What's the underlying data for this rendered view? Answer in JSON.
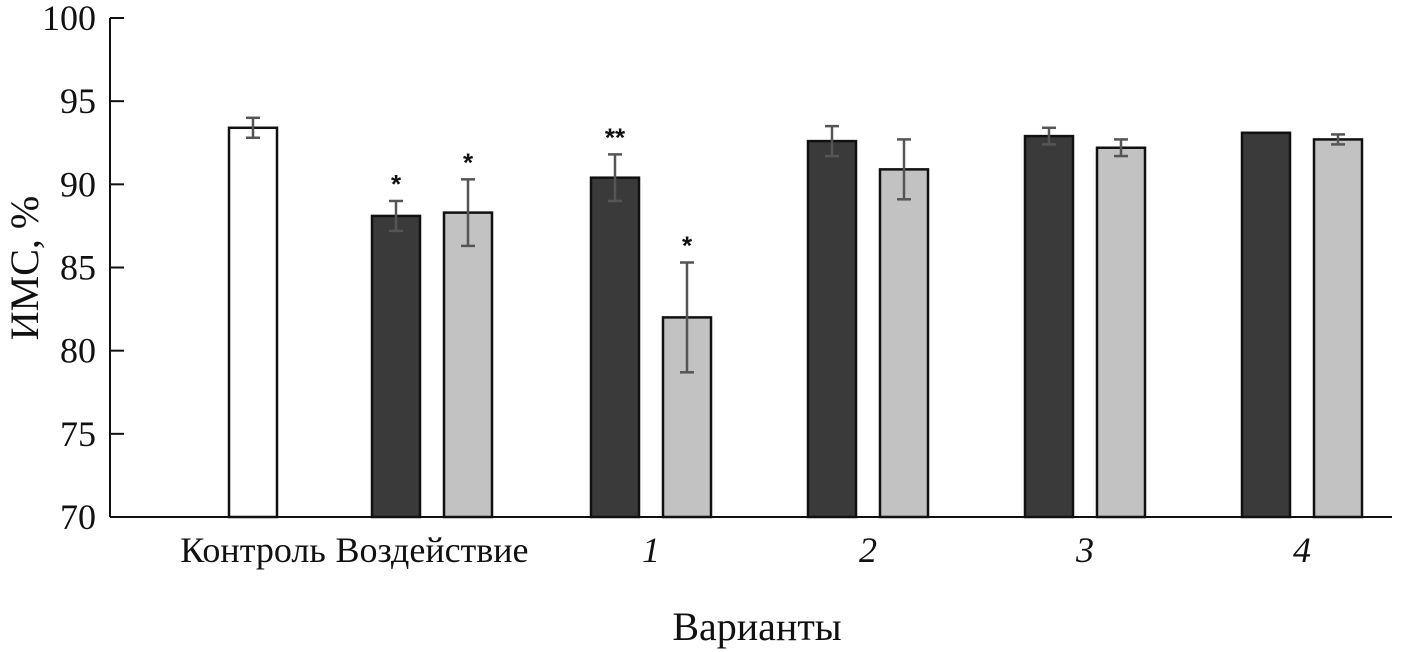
{
  "chart_data": {
    "type": "bar",
    "ylabel": "ИМС, %",
    "xlabel": "Варианты",
    "ylim": [
      70,
      100
    ],
    "yticks": [
      70,
      75,
      80,
      85,
      90,
      95,
      100
    ],
    "grid": false,
    "legend": "none",
    "colors": {
      "dark": "#3a3a3a",
      "light": "#c2c2c2",
      "control": "#ffffff",
      "error": "#555555"
    },
    "groups": [
      {
        "label": "Контроль",
        "italic": false,
        "bars": [
          {
            "style": "control",
            "value": 93.4,
            "err": 0.6,
            "sig": ""
          }
        ]
      },
      {
        "label": "Воздействие",
        "italic": false,
        "bars": [
          {
            "style": "dark",
            "value": 88.1,
            "err": 0.9,
            "sig": "*"
          },
          {
            "style": "light",
            "value": 88.3,
            "err": 2.0,
            "sig": "*"
          }
        ]
      },
      {
        "label": "1",
        "italic": true,
        "bars": [
          {
            "style": "dark",
            "value": 90.4,
            "err": 1.4,
            "sig": "**"
          },
          {
            "style": "light",
            "value": 82.0,
            "err": 3.3,
            "sig": "*"
          }
        ]
      },
      {
        "label": "2",
        "italic": true,
        "bars": [
          {
            "style": "dark",
            "value": 92.6,
            "err": 0.9,
            "sig": ""
          },
          {
            "style": "light",
            "value": 90.9,
            "err": 1.8,
            "sig": ""
          }
        ]
      },
      {
        "label": "3",
        "italic": true,
        "bars": [
          {
            "style": "dark",
            "value": 92.9,
            "err": 0.5,
            "sig": ""
          },
          {
            "style": "light",
            "value": 92.2,
            "err": 0.5,
            "sig": ""
          }
        ]
      },
      {
        "label": "4",
        "italic": true,
        "bars": [
          {
            "style": "dark",
            "value": 93.1,
            "err": 0.0,
            "sig": ""
          },
          {
            "style": "light",
            "value": 92.7,
            "err": 0.3,
            "sig": ""
          }
        ]
      }
    ]
  }
}
